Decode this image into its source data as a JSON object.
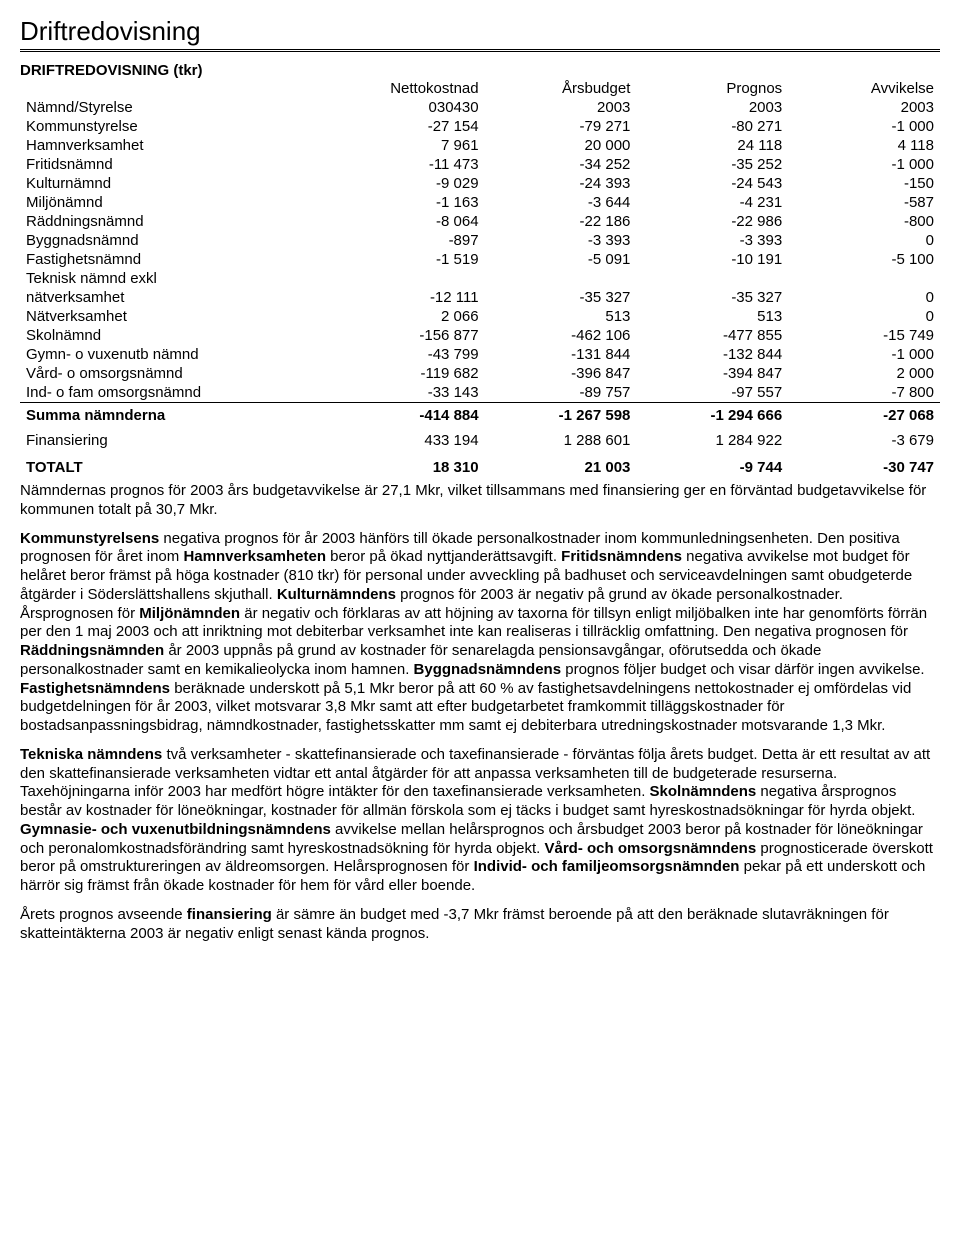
{
  "title": "Driftredovisning",
  "subtitle": "DRIFTREDOVISNING (tkr)",
  "columns": {
    "label_top": "",
    "label_bottom": "Nämnd/Styrelse",
    "c1_top": "Nettokostnad",
    "c1_bottom": "030430",
    "c2_top": "Årsbudget",
    "c2_bottom": "2003",
    "c3_top": "Prognos",
    "c3_bottom": "2003",
    "c4_top": "Avvikelse",
    "c4_bottom": "2003"
  },
  "rows": [
    {
      "label": "Kommunstyrelse",
      "c1": "-27 154",
      "c2": "-79 271",
      "c3": "-80 271",
      "c4": "-1 000"
    },
    {
      "label": "Hamnverksamhet",
      "c1": "7 961",
      "c2": "20 000",
      "c3": "24 118",
      "c4": "4 118"
    },
    {
      "label": "Fritidsnämnd",
      "c1": "-11 473",
      "c2": "-34 252",
      "c3": "-35 252",
      "c4": "-1 000"
    },
    {
      "label": "Kulturnämnd",
      "c1": "-9 029",
      "c2": "-24 393",
      "c3": "-24 543",
      "c4": "-150"
    },
    {
      "label": "Miljönämnd",
      "c1": "-1 163",
      "c2": "-3 644",
      "c3": "-4 231",
      "c4": "-587"
    },
    {
      "label": "Räddningsnämnd",
      "c1": "-8 064",
      "c2": "-22 186",
      "c3": "-22 986",
      "c4": "-800"
    },
    {
      "label": "Byggnadsnämnd",
      "c1": "-897",
      "c2": "-3 393",
      "c3": "-3 393",
      "c4": "0"
    },
    {
      "label": "Fastighetsnämnd",
      "c1": "-1 519",
      "c2": "-5 091",
      "c3": "-10 191",
      "c4": "-5 100"
    },
    {
      "label": "Teknisk nämnd exkl",
      "c1": "",
      "c2": "",
      "c3": "",
      "c4": ""
    },
    {
      "label": "nätverksamhet",
      "c1": "-12 111",
      "c2": "-35 327",
      "c3": "-35 327",
      "c4": "0"
    },
    {
      "label": "Nätverksamhet",
      "c1": "2 066",
      "c2": "513",
      "c3": "513",
      "c4": "0"
    },
    {
      "label": "Skolnämnd",
      "c1": "-156 877",
      "c2": "-462 106",
      "c3": "-477 855",
      "c4": "-15 749"
    },
    {
      "label": "Gymn- o vuxenutb nämnd",
      "c1": "-43 799",
      "c2": "-131 844",
      "c3": "-132 844",
      "c4": "-1 000"
    },
    {
      "label": "Vård- o omsorgsnämnd",
      "c1": "-119 682",
      "c2": "-396 847",
      "c3": "-394 847",
      "c4": "2 000"
    },
    {
      "label": "Ind- o fam omsorgsnämnd",
      "c1": "-33 143",
      "c2": "-89 757",
      "c3": "-97 557",
      "c4": "-7 800"
    }
  ],
  "summa": {
    "label": "Summa nämnderna",
    "c1": "-414 884",
    "c2": "-1 267 598",
    "c3": "-1 294 666",
    "c4": "-27 068"
  },
  "finans": {
    "label": "Finansiering",
    "c1": "433 194",
    "c2": "1 288 601",
    "c3": "1 284 922",
    "c4": "-3 679"
  },
  "totalt": {
    "label": "TOTALT",
    "c1": "18 310",
    "c2": "21 003",
    "c3": "-9 744",
    "c4": "-30 747"
  },
  "paragraphs": {
    "p1": "Nämndernas prognos för 2003 års budgetavvikelse är 27,1 Mkr, vilket tillsammans med finansiering ger en förväntad budgetavvikelse för kommunen totalt på 30,7 Mkr.",
    "p2a": "Kommunstyrelsens",
    "p2b": " negativa prognos för år 2003 hänförs till ökade personalkostnader inom kommunledningsenheten. Den positiva prognosen för året inom ",
    "p2c": "Hamnverksamheten",
    "p2d": " beror på ökad nyttjanderättsavgift. ",
    "p2e": "Fritidsnämndens",
    "p2f": " negativa avvikelse mot budget för helåret beror främst på höga kostnader (810 tkr) för personal under avveckling på badhuset och serviceavdelningen samt obudgeterde åtgärder i Söderslättshallens skjuthall. ",
    "p2g": "Kulturnämndens",
    "p2h": " prognos för 2003 är negativ på grund av ökade personalkostnader. Årsprognosen för ",
    "p2i": "Miljönämnden",
    "p2j": " är negativ och förklaras av att höjning av taxorna för tillsyn enligt miljöbalken inte har genomförts förrän per den 1 maj 2003 och att inriktning mot debiterbar verksamhet inte kan realiseras i tillräcklig omfattning. Den negativa prognosen för ",
    "p2k": "Räddningsnämnden",
    "p2l": " år 2003 uppnås på grund av kostnader för senarelagda pensionsavgångar, oförutsedda och ökade personalkostnader samt en kemikalieolycka inom hamnen. ",
    "p2m": "Byggnadsnämndens",
    "p2n": " prognos följer budget och visar därför ingen avvikelse. ",
    "p2o": "Fastighetsnämndens",
    "p2p": " beräknade underskott på 5,1 Mkr beror på att 60 % av fastighetsavdelningens nettokostnader ej omfördelas vid budgetdelningen för år 2003, vilket motsvarar 3,8 Mkr samt att efter budgetarbetet framkommit tilläggskostnader för bostadsanpassningsbidrag, nämndkostnader, fastighetsskatter mm samt ej debiterbara utredningskostnader motsvarande 1,3 Mkr.",
    "p3a": "Tekniska nämndens",
    "p3b": " två verksamheter - skattefinansierade och taxefinansierade - förväntas följa årets budget. Detta är ett resultat av att den skattefinansierade verksamheten vidtar ett antal åtgärder för att anpassa verksamheten till de budgeterade resurserna. Taxehöjningarna inför 2003 har medfört högre intäkter för den taxefinansierade verksamheten. ",
    "p3c": "Skolnämndens",
    "p3d": " negativa årsprognos består av kostnader för löneökningar, kostnader för allmän förskola som ej täcks i budget samt hyreskostnadsökningar för hyrda objekt. ",
    "p3e": "Gymnasie- och vuxenutbildningsnämndens",
    "p3f": " avvikelse mellan helårsprognos och årsbudget 2003 beror på kostnader för löneökningar och peronalomkostnadsförändring samt hyreskostnadsökning för hyrda objekt. ",
    "p3g": "Vård- och omsorgsnämndens",
    "p3h": " prognosticerade överskott beror på omstruktureringen av äldreomsorgen. Helårsprognosen för ",
    "p3i": "Individ- och familjeomsorgsnämnden",
    "p3j": " pekar på ett underskott och härrör sig främst från ökade kostnader för hem för vård eller boende.",
    "p4a": "Årets prognos avseende ",
    "p4b": "finansiering",
    "p4c": " är sämre än budget med -3,7 Mkr främst beroende på att den beräknade slutavräkningen för skatteintäkterna 2003 är negativ enligt senast kända prognos."
  },
  "style": {
    "background_color": "#ffffff",
    "text_color": "#000000",
    "title_fontsize": 26,
    "body_fontsize": 15,
    "font_family": "Arial"
  }
}
